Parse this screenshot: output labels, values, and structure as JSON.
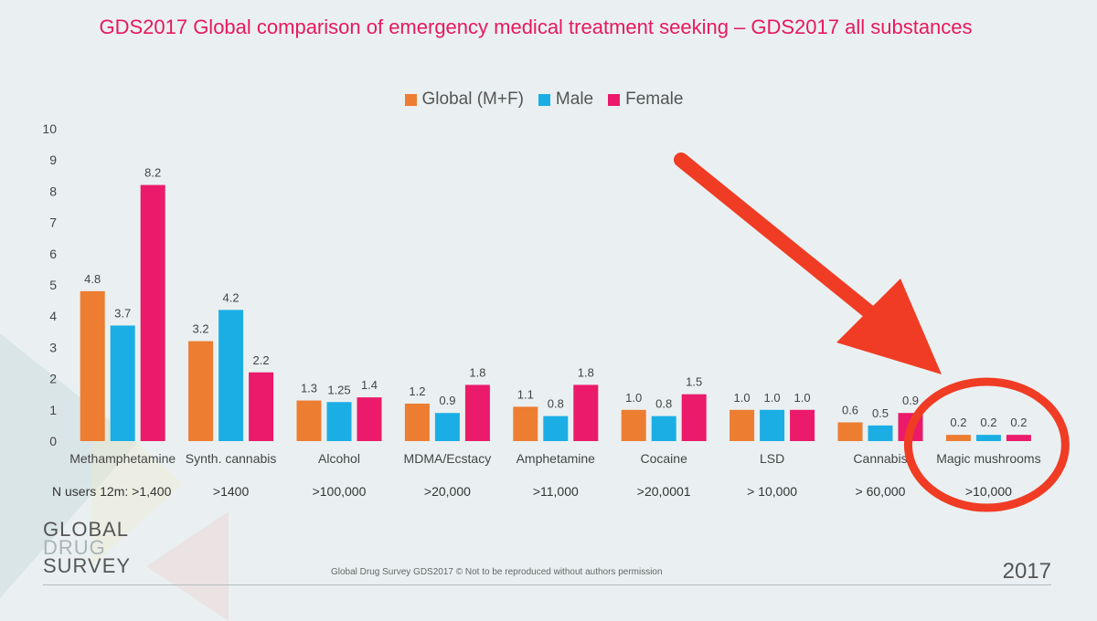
{
  "page": {
    "title": "GDS2017 Global comparison of emergency medical treatment seeking – GDS2017 all substances",
    "footer_note": "Global Drug Survey GDS2017 © Not to be reproduced without authors permission",
    "year": "2017",
    "logo": {
      "line1": "GLOBAL",
      "line2": "DRUG",
      "line3": "SURVEY"
    },
    "n_users_label": "N users 12m:",
    "n_users": [
      ">1,400",
      ">1400",
      ">100,000",
      ">20,000",
      ">11,000",
      ">20,0001",
      "> 10,000",
      "> 60,000",
      ">10,000"
    ]
  },
  "chart_data": {
    "type": "bar",
    "title": "GDS2017 Global comparison of emergency medical treatment seeking – GDS2017 all substances",
    "xlabel": "",
    "ylabel": "",
    "ylim": [
      0,
      10
    ],
    "yticks": [
      0,
      1,
      2,
      3,
      4,
      5,
      6,
      7,
      8,
      9,
      10
    ],
    "grid": false,
    "legend_position": "top-center",
    "categories": [
      "Methamphetamine",
      "Synth. cannabis",
      "Alcohol",
      "MDMA/Ecstacy",
      "Amphetamine",
      "Cocaine",
      "LSD",
      "Cannabis",
      "Magic mushrooms"
    ],
    "series": [
      {
        "name": "Global (M+F)",
        "color": "#ed7d31",
        "values": [
          4.8,
          3.2,
          1.3,
          1.2,
          1.1,
          1.0,
          1.0,
          0.6,
          0.2
        ],
        "labels": [
          "4.8",
          "3.2",
          "1.3",
          "1.2",
          "1.1",
          "1.0",
          "1.0",
          "0.6",
          "0.2"
        ]
      },
      {
        "name": "Male",
        "color": "#1aaee5",
        "values": [
          3.7,
          4.2,
          1.25,
          0.9,
          0.8,
          0.8,
          1.0,
          0.5,
          0.2
        ],
        "labels": [
          "3.7",
          "4.2",
          "1.25",
          "0.9",
          "0.8",
          "0.8",
          "1.0",
          "0.5",
          "0.2"
        ]
      },
      {
        "name": "Female",
        "color": "#eb1a6b",
        "values": [
          8.2,
          2.2,
          1.4,
          1.8,
          1.8,
          1.5,
          1.0,
          0.9,
          0.2
        ],
        "labels": [
          "8.2",
          "2.2",
          "1.4",
          "1.8",
          "1.8",
          "1.5",
          "1.0",
          "0.9",
          "0.2"
        ]
      }
    ],
    "annotation": {
      "type": "arrow-and-circle",
      "target_category": "Magic mushrooms",
      "color": "#f03c24"
    }
  }
}
